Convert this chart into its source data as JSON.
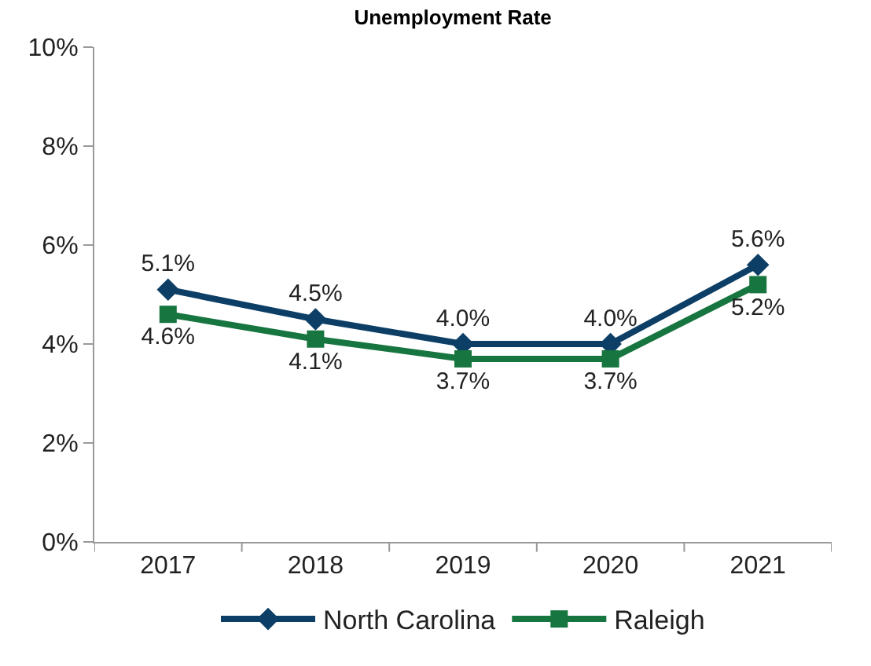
{
  "chart_data": {
    "type": "line",
    "title": "Unemployment Rate",
    "categories": [
      "2017",
      "2018",
      "2019",
      "2020",
      "2021"
    ],
    "series": [
      {
        "name": "North Carolina",
        "color": "#0d3f66",
        "marker": "diamond",
        "values": [
          5.1,
          4.5,
          4.0,
          4.0,
          5.6
        ],
        "value_labels": [
          "5.1%",
          "4.5%",
          "4.0%",
          "4.0%",
          "5.6%"
        ]
      },
      {
        "name": "Raleigh",
        "color": "#17753f",
        "marker": "square",
        "values": [
          4.6,
          4.1,
          3.7,
          3.7,
          5.2
        ],
        "value_labels": [
          "4.6%",
          "4.1%",
          "3.7%",
          "3.7%",
          "5.2%"
        ]
      }
    ],
    "ylim": [
      0,
      10
    ],
    "yticks": [
      {
        "value": 0,
        "label": "0%"
      },
      {
        "value": 2,
        "label": "2%"
      },
      {
        "value": 4,
        "label": "4%"
      },
      {
        "value": 6,
        "label": "6%"
      },
      {
        "value": 8,
        "label": "8%"
      },
      {
        "value": 10,
        "label": "10%"
      }
    ],
    "legend": "bottom",
    "line_style": "solid"
  }
}
